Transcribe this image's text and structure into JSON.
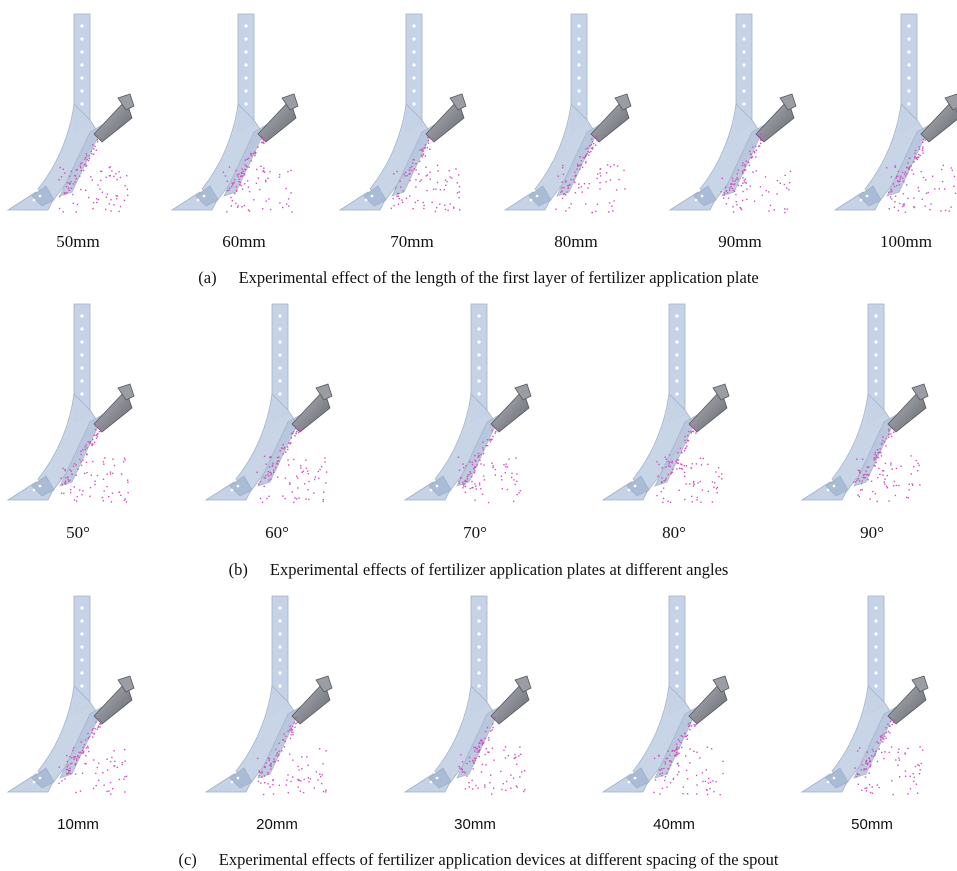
{
  "figure": {
    "rows": [
      {
        "id": "a",
        "labels": [
          "50mm",
          "60mm",
          "70mm",
          "80mm",
          "90mm",
          "100mm"
        ],
        "caption_tag": "(a)",
        "caption_text": "Experimental effect of the length of the first layer of fertilizer application plate"
      },
      {
        "id": "b",
        "labels": [
          "50°",
          "60°",
          "70°",
          "80°",
          "90°"
        ],
        "caption_tag": "(b)",
        "caption_text": "Experimental effects of fertilizer application plates at different angles"
      },
      {
        "id": "c",
        "labels": [
          "10mm",
          "20mm",
          "30mm",
          "40mm",
          "50mm"
        ],
        "caption_tag": "(c)",
        "caption_text": "Experimental effects of fertilizer application devices at different spacing of the spout"
      }
    ]
  },
  "colors": {
    "body": "#c6d3e6",
    "body_edge": "#9fb1cb",
    "funnel": "#8c8f95",
    "particles": "#d24fbf"
  }
}
